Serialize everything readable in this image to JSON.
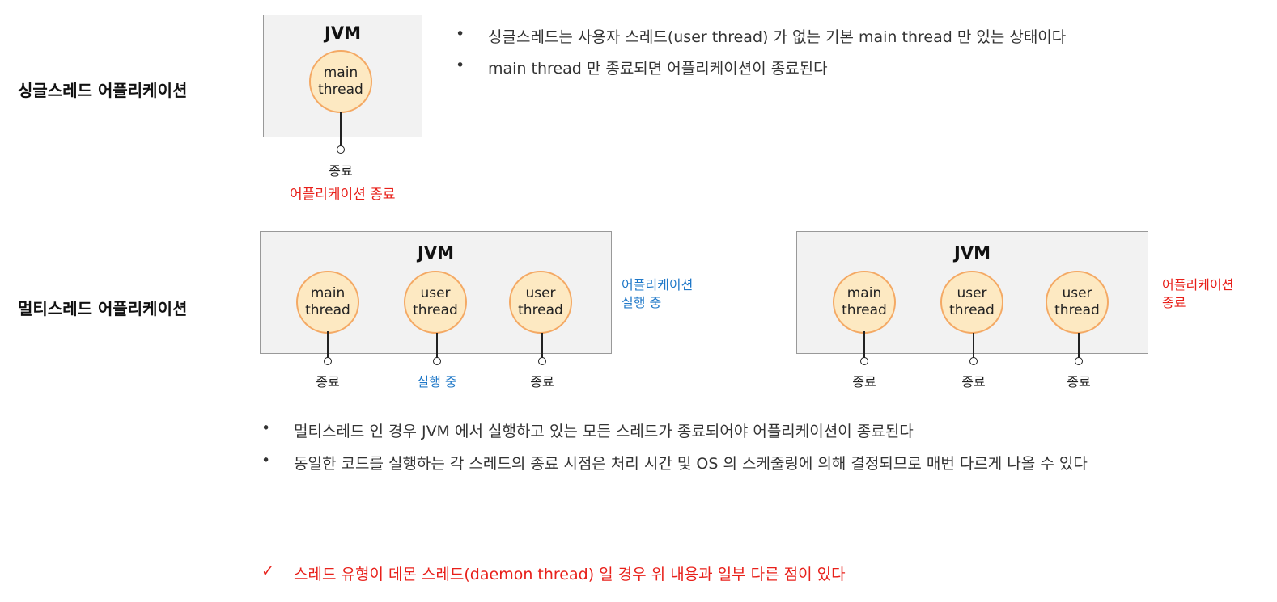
{
  "single": {
    "title": "싱글스레드 어플리케이션",
    "jvm_label": "JVM",
    "thread": {
      "line1": "main",
      "line2": "thread"
    },
    "end_label": "종료",
    "app_status": "어플리케이션 종료",
    "bullets": [
      "싱글스레드는 사용자 스레드(user thread) 가 없는 기본 main thread 만 있는 상태이다",
      "main thread 만 종료되면 어플리케이션이 종료된다"
    ]
  },
  "multi": {
    "title": "멀티스레드 어플리케이션",
    "diagrams": [
      {
        "jvm_label": "JVM",
        "threads": [
          {
            "line1": "main",
            "line2": "thread",
            "state": "종료",
            "state_color": "#222222"
          },
          {
            "line1": "user",
            "line2": "thread",
            "state": "실행 중",
            "state_color": "#1f78c8"
          },
          {
            "line1": "user",
            "line2": "thread",
            "state": "종료",
            "state_color": "#222222"
          }
        ],
        "app_status_line1": "어플리케이션",
        "app_status_line2": "실행 중",
        "app_status_color": "#1f78c8"
      },
      {
        "jvm_label": "JVM",
        "threads": [
          {
            "line1": "main",
            "line2": "thread",
            "state": "종료",
            "state_color": "#222222"
          },
          {
            "line1": "user",
            "line2": "thread",
            "state": "종료",
            "state_color": "#222222"
          },
          {
            "line1": "user",
            "line2": "thread",
            "state": "종료",
            "state_color": "#222222"
          }
        ],
        "app_status_line1": "어플리케이션",
        "app_status_line2": "종료",
        "app_status_color": "#e8201a"
      }
    ],
    "bullets": [
      "멀티스레드 인 경우 JVM 에서 실행하고 있는 모든 스레드가 종료되어야 어플리케이션이 종료된다",
      "동일한 코드를 실행하는 각 스레드의 종료 시점은 처리 시간 및 OS 의 스케줄링에 의해 결정되므로 매번 다르게 나올 수 있다"
    ]
  },
  "footer_note": {
    "mark": "✓",
    "text": "스레드 유형이 데몬 스레드(daemon thread) 일 경우 위 내용과 일부 다른 점이 있다",
    "color": "#e8201a"
  },
  "bullet_char": "•"
}
